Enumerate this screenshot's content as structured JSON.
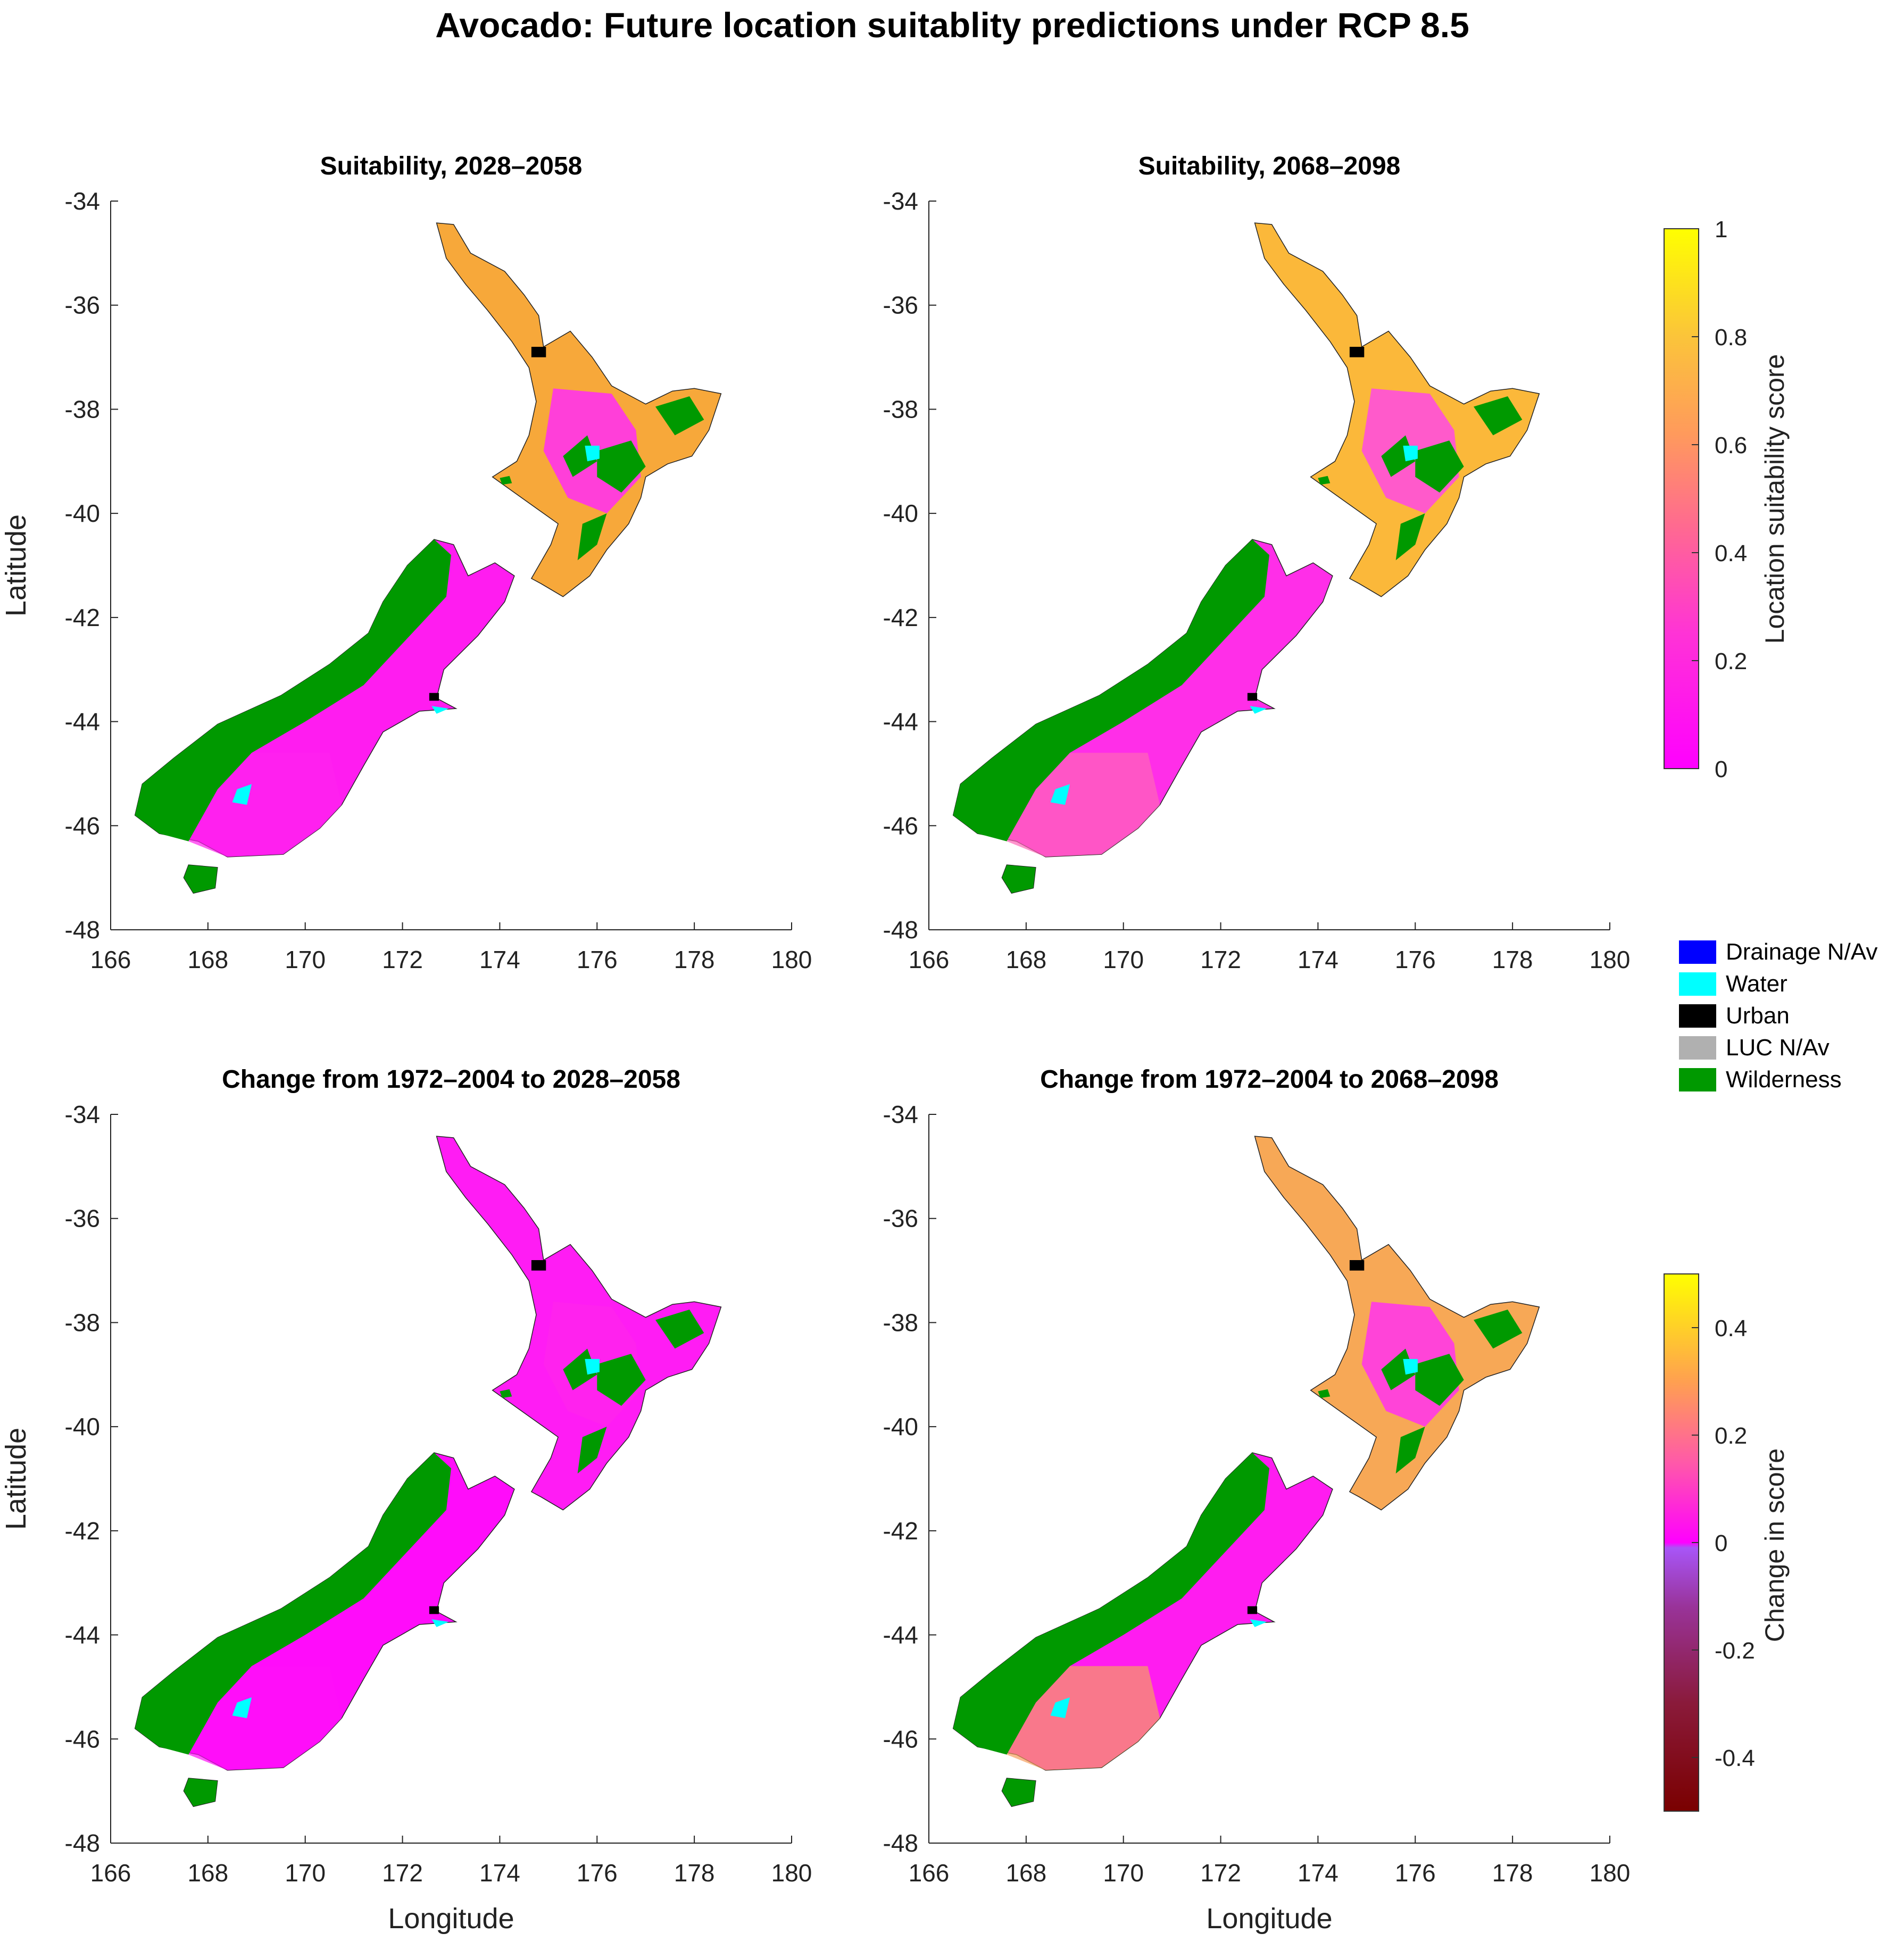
{
  "figure": {
    "title": "Avocado: Future location suitablity predictions under RCP 8.5"
  },
  "axes": {
    "xlabel": "Longitude",
    "ylabel": "Latitude",
    "x_ticks": [
      "166",
      "168",
      "170",
      "172",
      "174",
      "176",
      "178",
      "180"
    ],
    "y_ticks": [
      "-34",
      "-36",
      "-38",
      "-40",
      "-42",
      "-44",
      "-46",
      "-48"
    ],
    "xlim": [
      166,
      180
    ],
    "ylim": [
      -48,
      -34
    ]
  },
  "panels": [
    {
      "title": "Suitability, 2028–2058",
      "kind": "suitability"
    },
    {
      "title": "Suitability, 2068–2098",
      "kind": "suitability_late"
    },
    {
      "title": "Change from 1972–2004 to 2028–2058",
      "kind": "change"
    },
    {
      "title": "Change from 1972–2004 to 2068–2098",
      "kind": "change_late"
    }
  ],
  "colorbar_suitability": {
    "label": "Location suitability score",
    "ticks": [
      "1",
      "0.8",
      "0.6",
      "0.4",
      "0.2",
      "0"
    ],
    "range": [
      0,
      1
    ],
    "colors": [
      "#ffff00",
      "#fbc43a",
      "#ffa050",
      "#ff7080",
      "#ff44c8",
      "#ff00ff"
    ]
  },
  "colorbar_change": {
    "label": "Change in score",
    "ticks": [
      "0.4",
      "0.2",
      "0",
      "-0.2",
      "-0.4"
    ],
    "range": [
      -0.5,
      0.5
    ],
    "colors": [
      "#ffff00",
      "#fbc43a",
      "#ff7080",
      "#ff00ff",
      "#9a5ff0",
      "#993399",
      "#7a0000"
    ]
  },
  "land_class_legend": [
    {
      "label": "Drainage N/Av",
      "color": "#0000ff"
    },
    {
      "label": "Water",
      "color": "#00ffff"
    },
    {
      "label": "Urban",
      "color": "#000000"
    },
    {
      "label": "LUC N/Av",
      "color": "#b0b0b0"
    },
    {
      "label": "Wilderness",
      "color": "#009900"
    }
  ]
}
